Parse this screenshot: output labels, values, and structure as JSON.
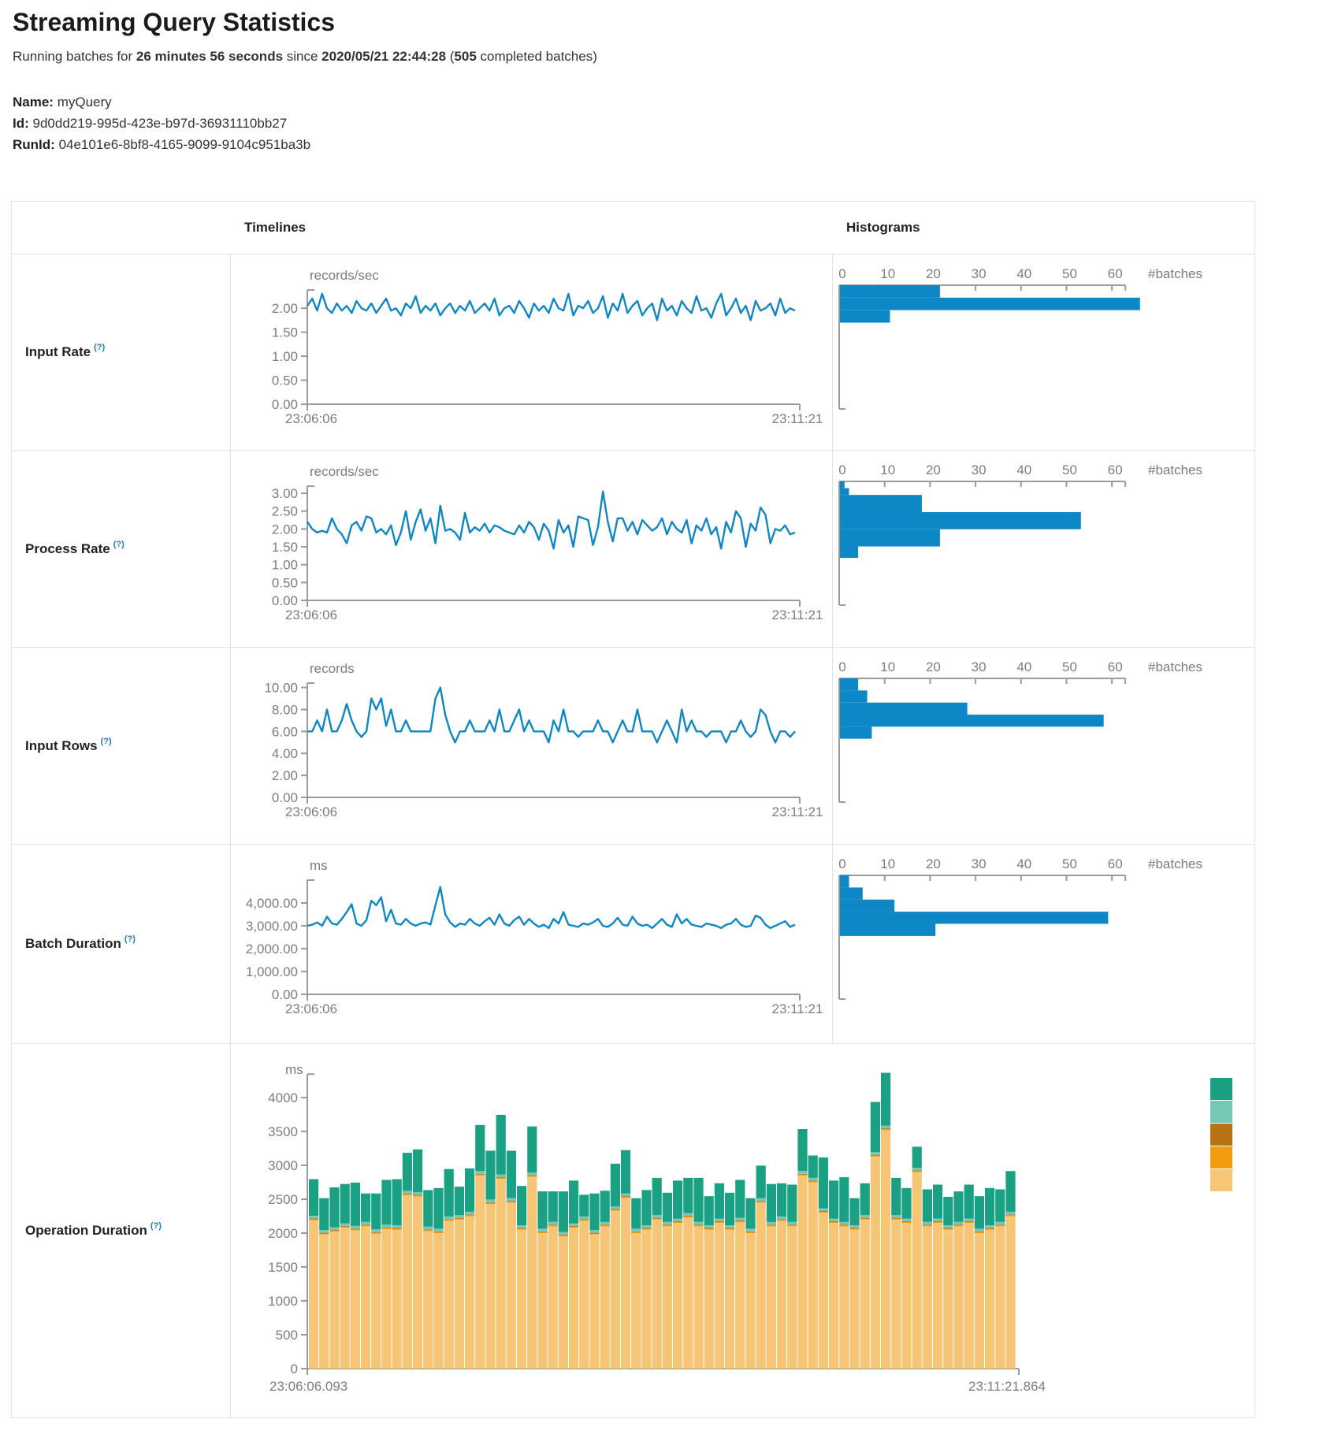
{
  "page": {
    "title": "Streaming Query Statistics",
    "running": {
      "pre": "Running batches for ",
      "duration": "26 minutes 56 seconds",
      "mid": " since ",
      "since": "2020/05/21 22:44:28",
      "open": " (",
      "count": "505",
      "close": " completed batches)"
    },
    "name_label": "Name:",
    "name_value": "myQuery",
    "id_label": "Id:",
    "id_value": "9d0dd219-995d-423e-b97d-36931110bb27",
    "runid_label": "RunId:",
    "runid_value": "04e101e6-8bf8-4165-9099-9104c951ba3b"
  },
  "table": {
    "col_timelines": "Timelines",
    "col_histograms": "Histograms",
    "help_marker": "(?)",
    "hist_axis_label": "#batches"
  },
  "colors": {
    "blue": "#0d87c5",
    "axis": "#9b9b9b",
    "text_gray": "#7d7d7d",
    "help_blue": "#1e7bb8",
    "legend": [
      "#1aa184",
      "#76c8b6",
      "#b87412",
      "#f39c11",
      "#f6c575"
    ]
  },
  "chart_data": [
    {
      "name": "Input Rate",
      "type": "line",
      "unit": "records/sec",
      "y_max": 2.38,
      "y_ticks": [
        2,
        1.5,
        1,
        0.5,
        0
      ],
      "y_tick_labels": [
        "2.00",
        "1.50",
        "1.00",
        "0.50",
        "0.00"
      ],
      "x_left": "23:06:06",
      "x_right": "23:11:21",
      "series": [
        2.05,
        2.2,
        1.95,
        2.3,
        2.0,
        1.9,
        2.1,
        1.95,
        2.05,
        1.9,
        2.15,
        2.0,
        1.95,
        2.1,
        1.9,
        2.05,
        2.2,
        1.95,
        2.0,
        1.85,
        2.1,
        2.0,
        2.25,
        1.9,
        2.05,
        1.95,
        2.1,
        1.85,
        2.0,
        2.1,
        1.9,
        2.05,
        1.95,
        2.15,
        1.9,
        2.0,
        2.1,
        1.95,
        2.2,
        1.85,
        2.0,
        2.05,
        1.9,
        2.15,
        2.0,
        1.8,
        2.1,
        1.95,
        2.05,
        1.9,
        2.2,
        2.0,
        1.95,
        2.3,
        1.85,
        2.05,
        2.0,
        2.15,
        1.9,
        2.0,
        2.25,
        1.8,
        2.1,
        1.95,
        2.3,
        1.9,
        2.05,
        2.15,
        1.85,
        2.0,
        2.1,
        1.75,
        2.2,
        1.95,
        2.05,
        1.85,
        2.15,
        2.0,
        1.9,
        2.25,
        1.95,
        2.0,
        1.8,
        2.1,
        2.3,
        1.85,
        2.0,
        2.2,
        1.9,
        2.05,
        1.75,
        2.15,
        1.95,
        2.0,
        2.1,
        1.85,
        2.2,
        1.9,
        2.0,
        1.95
      ],
      "histogram": {
        "ticks": [
          0,
          10,
          20,
          30,
          40,
          50,
          60
        ],
        "bars": [
          {
            "count": 22,
            "hi": 2.38,
            "lo": 2.12
          },
          {
            "count": 66,
            "hi": 2.12,
            "lo": 1.86
          },
          {
            "count": 11,
            "hi": 1.86,
            "lo": 1.6
          }
        ]
      }
    },
    {
      "name": "Process Rate",
      "type": "line",
      "unit": "records/sec",
      "y_max": 3.2,
      "y_ticks": [
        3,
        2.5,
        2,
        1.5,
        1,
        0.5,
        0
      ],
      "y_tick_labels": [
        "3.00",
        "2.50",
        "2.00",
        "1.50",
        "1.00",
        "0.50",
        "0.00"
      ],
      "x_left": "23:06:06",
      "x_right": "23:11:21",
      "series": [
        2.2,
        2.0,
        1.9,
        1.95,
        1.9,
        2.3,
        2.0,
        1.85,
        1.6,
        2.1,
        2.2,
        1.95,
        2.35,
        2.3,
        1.9,
        2.0,
        1.85,
        2.1,
        1.55,
        1.9,
        2.5,
        1.7,
        2.2,
        2.55,
        1.95,
        2.3,
        1.6,
        2.65,
        1.95,
        2.0,
        1.9,
        1.7,
        2.45,
        1.9,
        2.05,
        1.95,
        2.15,
        1.9,
        2.1,
        2.05,
        1.95,
        1.9,
        1.85,
        2.1,
        1.9,
        2.2,
        2.05,
        1.7,
        2.15,
        1.95,
        1.45,
        2.25,
        1.9,
        2.1,
        1.5,
        2.35,
        2.3,
        2.25,
        1.55,
        2.05,
        3.05,
        2.2,
        1.65,
        2.3,
        2.3,
        1.95,
        2.2,
        1.85,
        2.25,
        2.1,
        1.95,
        2.05,
        2.3,
        1.85,
        2.2,
        2.0,
        1.9,
        2.25,
        1.6,
        2.1,
        1.95,
        2.3,
        1.85,
        2.05,
        1.45,
        2.2,
        1.9,
        2.5,
        2.3,
        1.5,
        2.15,
        1.95,
        2.6,
        2.4,
        1.6,
        2.0,
        1.95,
        2.1,
        1.85,
        1.9
      ],
      "histogram": {
        "ticks": [
          0,
          10,
          20,
          30,
          40,
          50,
          60
        ],
        "bars": [
          {
            "count": 1,
            "hi": 3.2,
            "lo": 3.01
          },
          {
            "count": 2,
            "hi": 3.01,
            "lo": 2.82
          },
          {
            "count": 18,
            "hi": 2.82,
            "lo": 2.34
          },
          {
            "count": 53,
            "hi": 2.34,
            "lo": 1.86
          },
          {
            "count": 22,
            "hi": 1.86,
            "lo": 1.38
          },
          {
            "count": 4,
            "hi": 1.38,
            "lo": 1.06
          }
        ]
      }
    },
    {
      "name": "Input Rows",
      "type": "line",
      "unit": "records",
      "y_max": 10.4,
      "y_ticks": [
        10,
        8,
        6,
        4,
        2,
        0
      ],
      "y_tick_labels": [
        "10.00",
        "8.00",
        "6.00",
        "4.00",
        "2.00",
        "0.00"
      ],
      "x_left": "23:06:06",
      "x_right": "23:11:21",
      "series": [
        6,
        6,
        7,
        6,
        8,
        6,
        6,
        7,
        8.5,
        7,
        6,
        5.5,
        6,
        9,
        8,
        9,
        6.5,
        8,
        6,
        6,
        7,
        6,
        6,
        6,
        6,
        6,
        9,
        10,
        7.5,
        6,
        5,
        6,
        6,
        7,
        6,
        6,
        6,
        7,
        6,
        8,
        6,
        6,
        7,
        8,
        6,
        7,
        6,
        6,
        6,
        5,
        7,
        6,
        8,
        6,
        6,
        5.5,
        6,
        6,
        6,
        7,
        6,
        6,
        5,
        6,
        7,
        6,
        6,
        8,
        6,
        6,
        6,
        5,
        6,
        7,
        6,
        5,
        8,
        6,
        7,
        6,
        6,
        5.5,
        6,
        6,
        6,
        5,
        6,
        6,
        7,
        6,
        5.5,
        6,
        8,
        7.5,
        6,
        5,
        6,
        6,
        5.5,
        6
      ],
      "histogram": {
        "ticks": [
          0,
          10,
          20,
          30,
          40,
          50,
          60
        ],
        "bars": [
          {
            "count": 4,
            "hi": 10.4,
            "lo": 9.3
          },
          {
            "count": 6,
            "hi": 9.3,
            "lo": 8.2
          },
          {
            "count": 28,
            "hi": 8.2,
            "lo": 7.1
          },
          {
            "count": 58,
            "hi": 7.1,
            "lo": 6.0
          },
          {
            "count": 7,
            "hi": 6.0,
            "lo": 4.9
          }
        ]
      }
    },
    {
      "name": "Batch Duration",
      "type": "line",
      "unit": "ms",
      "y_max": 5000,
      "y_ticks": [
        4000,
        3000,
        2000,
        1000,
        0
      ],
      "y_tick_labels": [
        "4,000.00",
        "3,000.00",
        "2,000.00",
        "1,000.00",
        "0.00"
      ],
      "x_left": "23:06:06",
      "x_right": "23:11:21",
      "series": [
        3000,
        3050,
        3150,
        3000,
        3400,
        3100,
        3050,
        3300,
        3600,
        3950,
        3100,
        3000,
        3250,
        4100,
        3900,
        4250,
        3200,
        3700,
        3100,
        3050,
        3300,
        3100,
        3000,
        3100,
        3150,
        3050,
        3900,
        4700,
        3500,
        3150,
        2950,
        3100,
        3050,
        3300,
        3100,
        3000,
        3200,
        3350,
        3050,
        3500,
        3100,
        3000,
        3250,
        3400,
        3050,
        3300,
        3100,
        2950,
        3050,
        2900,
        3300,
        3100,
        3600,
        3050,
        3000,
        2950,
        3100,
        3050,
        3150,
        3300,
        3000,
        2950,
        3100,
        3350,
        3050,
        3000,
        3400,
        3100,
        3000,
        3050,
        2900,
        3100,
        3300,
        3050,
        2950,
        3500,
        3100,
        3300,
        3050,
        3000,
        2950,
        3100,
        3050,
        3000,
        2900,
        3050,
        3100,
        3300,
        3050,
        2950,
        3000,
        3450,
        3350,
        3050,
        2900,
        3000,
        3100,
        3200,
        2950,
        3050
      ],
      "histogram": {
        "ticks": [
          0,
          10,
          20,
          30,
          40,
          50,
          60
        ],
        "bars": [
          {
            "count": 2,
            "hi": 5000,
            "lo": 4470
          },
          {
            "count": 5,
            "hi": 4470,
            "lo": 3940
          },
          {
            "count": 12,
            "hi": 3940,
            "lo": 3410
          },
          {
            "count": 59,
            "hi": 3410,
            "lo": 2880
          },
          {
            "count": 21,
            "hi": 2880,
            "lo": 2350
          }
        ]
      }
    },
    {
      "name": "Operation Duration",
      "type": "stacked-bar",
      "unit": "ms",
      "y_ticks": [
        4000,
        3500,
        3000,
        2500,
        2000,
        1500,
        1000,
        500,
        0
      ],
      "y_tick_labels": [
        "4000",
        "3500",
        "3000",
        "2500",
        "2000",
        "1500",
        "1000",
        "500",
        "0"
      ],
      "x_left": "23:06:06.093",
      "x_right": "23:11:21.864",
      "sliver_values": {
        "orange": 15,
        "brown": 10,
        "teal": 40
      },
      "bars": [
        [
          2190,
          540
        ],
        [
          1980,
          470
        ],
        [
          2020,
          590
        ],
        [
          2080,
          580
        ],
        [
          2040,
          640
        ],
        [
          2100,
          420
        ],
        [
          1990,
          530
        ],
        [
          2060,
          660
        ],
        [
          2050,
          680
        ],
        [
          2560,
          560
        ],
        [
          2540,
          630
        ],
        [
          2030,
          540
        ],
        [
          2000,
          600
        ],
        [
          2180,
          700
        ],
        [
          2200,
          420
        ],
        [
          2250,
          640
        ],
        [
          2850,
          680
        ],
        [
          2430,
          720
        ],
        [
          2800,
          880
        ],
        [
          2450,
          700
        ],
        [
          2050,
          580
        ],
        [
          2830,
          680
        ],
        [
          2000,
          550
        ],
        [
          2100,
          450
        ],
        [
          1950,
          600
        ],
        [
          2080,
          630
        ],
        [
          2180,
          320
        ],
        [
          1980,
          540
        ],
        [
          2100,
          460
        ],
        [
          2330,
          630
        ],
        [
          2520,
          640
        ],
        [
          2000,
          450
        ],
        [
          2050,
          520
        ],
        [
          2200,
          550
        ],
        [
          2100,
          430
        ],
        [
          2150,
          560
        ],
        [
          2230,
          520
        ],
        [
          2100,
          650
        ],
        [
          2050,
          430
        ],
        [
          2150,
          520
        ],
        [
          2050,
          480
        ],
        [
          2160,
          560
        ],
        [
          2000,
          450
        ],
        [
          2450,
          480
        ],
        [
          2100,
          560
        ],
        [
          2180,
          490
        ],
        [
          2100,
          550
        ],
        [
          2850,
          620
        ],
        [
          2750,
          330
        ],
        [
          2300,
          750
        ],
        [
          2150,
          560
        ],
        [
          2100,
          660
        ],
        [
          2050,
          400
        ],
        [
          2200,
          470
        ],
        [
          3130,
          740
        ],
        [
          3520,
          780
        ],
        [
          2200,
          550
        ],
        [
          2150,
          450
        ],
        [
          2900,
          310
        ],
        [
          2100,
          480
        ],
        [
          2150,
          500
        ],
        [
          2050,
          420
        ],
        [
          2100,
          450
        ],
        [
          2150,
          500
        ],
        [
          2000,
          480
        ],
        [
          2050,
          550
        ],
        [
          2100,
          480
        ],
        [
          2250,
          600
        ]
      ]
    }
  ]
}
